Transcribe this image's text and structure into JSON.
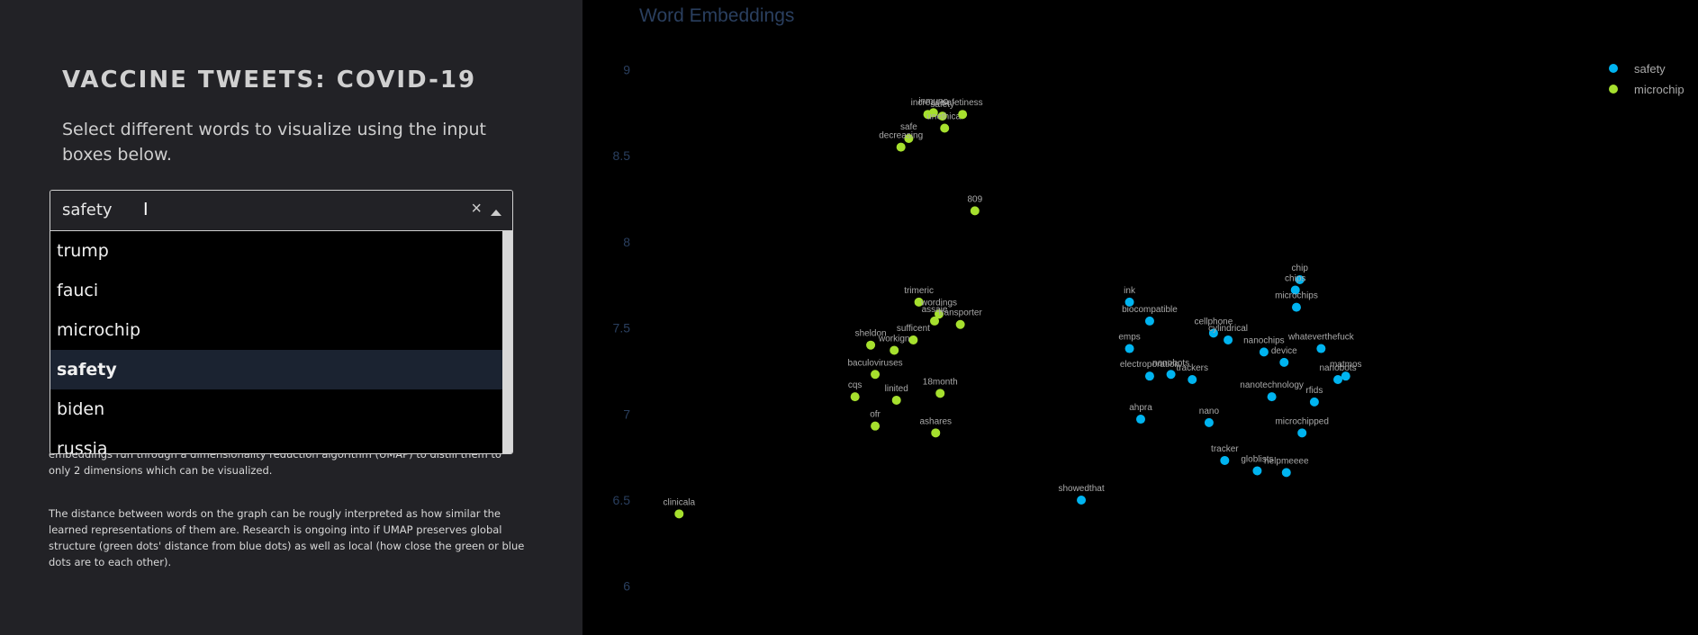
{
  "sidebar": {
    "title": "VACCINE TWEETS: COVID-19",
    "intro": "Select different words to visualize using the input boxes below.",
    "para1": "embeddings run through a dimensionality reduction algorithm (UMAP) to distill them to only 2 dimensions which can be visualized.",
    "para2": "The distance between words on the graph can be rougly interpreted as how similar the learned representations of them are. Research is ongoing into if UMAP preserves global structure (green dots' distance from blue dots) as well as local (how close the green or blue dots are to each other).",
    "dropdown": {
      "selected": "safety",
      "options": [
        "trump",
        "fauci",
        "microchip",
        "safety",
        "biden",
        "russia"
      ],
      "highlighted_index": 3,
      "clear_icon": "close-icon",
      "arrow_icon": "chevron-up-icon"
    }
  },
  "chart_data": {
    "type": "scatter",
    "title": "Word Embeddings",
    "xlabel": "",
    "ylabel": "",
    "x_range": [
      -1.7,
      7.3
    ],
    "y_range": [
      5.8,
      9.3
    ],
    "y_ticks": [
      6,
      6.5,
      7,
      7.5,
      8,
      8.5,
      9
    ],
    "legend_position": "top-right",
    "grid": false,
    "series": [
      {
        "name": "safety",
        "color": "#00b4f0",
        "points": [
          {
            "label": "ink",
            "x": 2.7,
            "y": 7.65
          },
          {
            "label": "biocompatible",
            "x": 2.88,
            "y": 7.54
          },
          {
            "label": "emps",
            "x": 2.7,
            "y": 7.38
          },
          {
            "label": "electroporation",
            "x": 2.88,
            "y": 7.22
          },
          {
            "label": "nanobots",
            "x": 3.07,
            "y": 7.23
          },
          {
            "label": "trackers",
            "x": 3.26,
            "y": 7.2
          },
          {
            "label": "ahpra",
            "x": 2.8,
            "y": 6.97
          },
          {
            "label": "showedthat",
            "x": 2.27,
            "y": 6.5
          },
          {
            "label": "cellphone",
            "x": 3.45,
            "y": 7.47
          },
          {
            "label": "cylindrical",
            "x": 3.58,
            "y": 7.43
          },
          {
            "label": "nano",
            "x": 3.41,
            "y": 6.95
          },
          {
            "label": "tracker",
            "x": 3.55,
            "y": 6.73
          },
          {
            "label": "globlists",
            "x": 3.84,
            "y": 6.67
          },
          {
            "label": "helpmeeee",
            "x": 4.1,
            "y": 6.66
          },
          {
            "label": "nanochips",
            "x": 3.9,
            "y": 7.36
          },
          {
            "label": "device",
            "x": 4.08,
            "y": 7.3
          },
          {
            "label": "nanotechnology",
            "x": 3.97,
            "y": 7.1
          },
          {
            "label": "microchipped",
            "x": 4.24,
            "y": 6.89
          },
          {
            "label": "rfids",
            "x": 4.35,
            "y": 7.07
          },
          {
            "label": "chip",
            "x": 4.22,
            "y": 7.78
          },
          {
            "label": "chips",
            "x": 4.18,
            "y": 7.72
          },
          {
            "label": "microchips",
            "x": 4.19,
            "y": 7.62
          },
          {
            "label": "whateverthefuck",
            "x": 4.41,
            "y": 7.38
          },
          {
            "label": "nanobots",
            "x": 4.56,
            "y": 7.2
          },
          {
            "label": "matmos",
            "x": 4.63,
            "y": 7.22
          }
        ]
      },
      {
        "name": "microchip",
        "color": "#a6e02e",
        "points": [
          {
            "label": "clinicala",
            "x": -1.32,
            "y": 6.42
          },
          {
            "label": "increase",
            "x": 0.9,
            "y": 8.74
          },
          {
            "label": "inmuno",
            "x": 0.95,
            "y": 8.75
          },
          {
            "label": "safety",
            "x": 1.03,
            "y": 8.73
          },
          {
            "label": "unethical",
            "x": 1.05,
            "y": 8.66
          },
          {
            "label": "safe",
            "x": 0.73,
            "y": 8.6
          },
          {
            "label": "decreasing",
            "x": 0.66,
            "y": 8.55
          },
          {
            "label": "safetiness",
            "x": 1.21,
            "y": 8.74
          },
          {
            "label": "809",
            "x": 1.32,
            "y": 8.18
          },
          {
            "label": "trimeric",
            "x": 0.82,
            "y": 7.65
          },
          {
            "label": "wordings",
            "x": 1.0,
            "y": 7.58
          },
          {
            "label": "assaie",
            "x": 0.96,
            "y": 7.54
          },
          {
            "label": "transporter",
            "x": 1.19,
            "y": 7.52
          },
          {
            "label": "sufficent",
            "x": 0.77,
            "y": 7.43
          },
          {
            "label": "workign",
            "x": 0.6,
            "y": 7.37
          },
          {
            "label": "sheldon",
            "x": 0.39,
            "y": 7.4
          },
          {
            "label": "baculoviruses",
            "x": 0.43,
            "y": 7.23
          },
          {
            "label": "cqs",
            "x": 0.25,
            "y": 7.1
          },
          {
            "label": "linited",
            "x": 0.62,
            "y": 7.08
          },
          {
            "label": "18month",
            "x": 1.01,
            "y": 7.12
          },
          {
            "label": "ofr",
            "x": 0.43,
            "y": 6.93
          },
          {
            "label": "ashares",
            "x": 0.97,
            "y": 6.89
          }
        ]
      }
    ]
  }
}
